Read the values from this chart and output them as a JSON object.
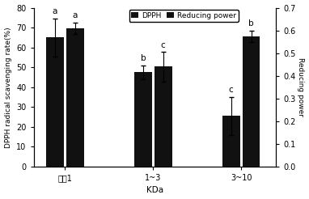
{
  "categories": [
    "小于1",
    "1~3",
    "3~10"
  ],
  "dpph_values": [
    65.0,
    47.5,
    25.5
  ],
  "dpph_errors": [
    9.5,
    3.5,
    9.5
  ],
  "rp_values": [
    0.61,
    0.44,
    0.575
  ],
  "rp_errors": [
    0.025,
    0.065,
    0.025
  ],
  "dpph_letters": [
    "a",
    "b",
    "c"
  ],
  "rp_letters": [
    "a",
    "c",
    "b"
  ],
  "bar_color": "#111111",
  "left_ylabel": "DPPH radical scavenging rate(%)",
  "right_ylabel": "Reducing power",
  "xlabel": "KDa",
  "left_ylim": [
    0,
    80
  ],
  "right_ylim": [
    0,
    0.7
  ],
  "left_yticks": [
    0,
    10,
    20,
    30,
    40,
    50,
    60,
    70,
    80
  ],
  "right_yticks": [
    0,
    0.1,
    0.2,
    0.3,
    0.4,
    0.5,
    0.6,
    0.7
  ],
  "legend_labels": [
    "DPPH",
    "Reducing power"
  ],
  "bar_width": 0.28,
  "figsize": [
    3.82,
    2.46
  ],
  "dpi": 100
}
